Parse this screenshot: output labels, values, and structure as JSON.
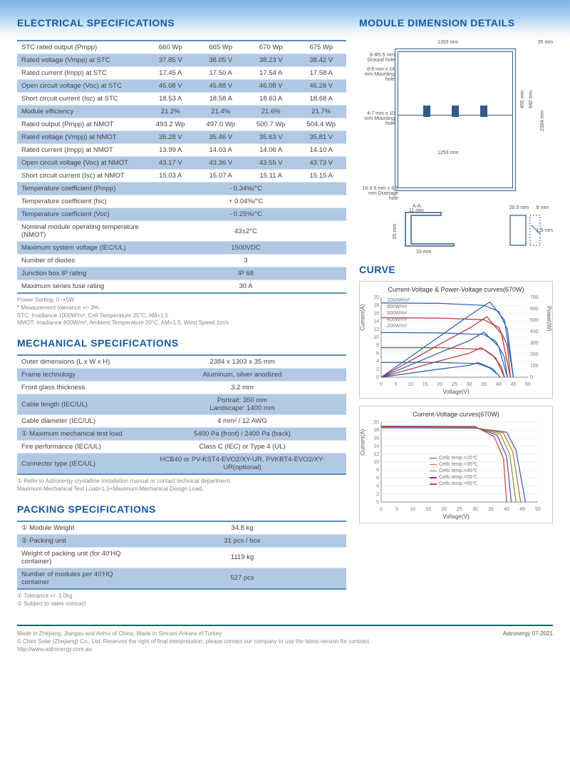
{
  "titles": {
    "electrical": "ELECTRICAL SPECIFICATIONS",
    "dimension": "MODULE DIMENSION DETAILS",
    "mechanical": "MECHANICAL SPECIFICATIONS",
    "curve": "CURVE",
    "packing": "PACKING SPECIFICATIONS"
  },
  "elec": {
    "rows4": [
      {
        "l": "STC rated output (Pmpp)",
        "v": [
          "660 Wp",
          "665 Wp",
          "670 Wp",
          "675 Wp"
        ]
      },
      {
        "l": "Rated voltage (Vmpp) at STC",
        "v": [
          "37.85 V",
          "38.05 V",
          "38.23 V",
          "38.42 V"
        ]
      },
      {
        "l": "Rated current (Impp) at STC",
        "v": [
          "17.45 A",
          "17.50 A",
          "17.54 A",
          "17.58 A"
        ]
      },
      {
        "l": "Open circuit voltage (Voc) at STC",
        "v": [
          "45.68 V",
          "45.88 V",
          "46.08 V",
          "46.28 V"
        ]
      },
      {
        "l": "Short circuit current (Isc) at STC",
        "v": [
          "18.53 A",
          "18.58 A",
          "18.63 A",
          "18.68 A"
        ]
      },
      {
        "l": "Module efficiency",
        "v": [
          "21.2%",
          "21.4%",
          "21.6%",
          "21.7%"
        ]
      },
      {
        "l": "Rated output (Pmpp) at NMOT",
        "v": [
          "493.2 Wp",
          "497.0 Wp",
          "500.7 Wp",
          "504.4 Wp"
        ]
      },
      {
        "l": "Rated voltage (Vmpp) at NMOT",
        "v": [
          "35.28 V",
          "35.46 V",
          "35.63 V",
          "35.81 V"
        ]
      },
      {
        "l": "Rated current (Impp) at NMOT",
        "v": [
          "13.99 A",
          "14.03 A",
          "14.06 A",
          "14.10 A"
        ]
      },
      {
        "l": "Open circuit voltage (Voc) at NMOT",
        "v": [
          "43.17 V",
          "43.36 V",
          "43.55 V",
          "43.73 V"
        ]
      },
      {
        "l": "Short circuit current (Isc) at NMOT",
        "v": [
          "15.03 A",
          "15.07 A",
          "15.11 A",
          "15.15 A"
        ]
      }
    ],
    "rows1": [
      {
        "l": "Temperature coefficient (Pmpp)",
        "v": "- 0.34%/°C"
      },
      {
        "l": "Temperature coefficient (Isc)",
        "v": "+ 0.04%/°C"
      },
      {
        "l": "Temperature coefficient (Voc)",
        "v": "- 0.25%/°C"
      },
      {
        "l": "Nominal module operating temperature (NMOT)",
        "v": "43±2°C"
      },
      {
        "l": "Maximum system voltage (IEC/UL)",
        "v": "1500VDC"
      },
      {
        "l": "Number of diodes",
        "v": "3"
      },
      {
        "l": "Junction box IP rating",
        "v": "IP 68"
      },
      {
        "l": "Maximum series fuse rating",
        "v": "30 A"
      }
    ],
    "notes": [
      "Power Sorting:  0~+5W",
      "* Measurement tolerance +/- 3%",
      "STC: Irradiance 1000W/m², Cell Temperature 25°C, AM=1.5",
      "NMOT: Irradiance 800W/m², Ambient Temperature 20°C, AM=1.5, Wind Speed 1m/s"
    ]
  },
  "mech": {
    "rows": [
      {
        "l": "Outer dimensions (L x W x H)",
        "v": "2384 x 1303 x 35 mm"
      },
      {
        "l": "Frame technology",
        "v": "Aluminum, silver anodized"
      },
      {
        "l": "Front glass thickness",
        "v": "3.2 mm"
      },
      {
        "l": "Cable length (IEC/UL)",
        "v": "Portrait: 350 mm\nLandscape: 1400 mm"
      },
      {
        "l": "Cable diameter (IEC/UL)",
        "v": "4 mm² / 12 AWG"
      },
      {
        "l": "① Maximum mechanical test load",
        "v": "5400 Pa (front) / 2400 Pa (back)"
      },
      {
        "l": "Fire performance (IEC/UL)",
        "v": "Class C (IEC) or Type 4 (UL)"
      },
      {
        "l": "Connector type (IEC/UL)",
        "v": "HCB40 or PV-KST4-EVO2/XY-UR, PVKBT4-EVO2/XY-UR(optional)"
      }
    ],
    "notes": [
      "① Refer to Astronergy crystalline installation manual or contact technical department.",
      "Maximum Mechanical Test Load=1.5×Maximum Mechanical Design Load."
    ]
  },
  "pack": {
    "rows": [
      {
        "l": "① Module Weight",
        "v": "34.8 kg"
      },
      {
        "l": "② Packing unit",
        "v": "31 pcs / box"
      },
      {
        "l": "Weight of packing unit (for 40'HQ container)",
        "v": "1119 kg"
      },
      {
        "l": "Number of modules per 40'HQ container",
        "v": "527 pcs"
      }
    ],
    "notes": [
      "① Tolerance +/- 1.0kg",
      "② Subject to sales contract"
    ]
  },
  "dim": {
    "w": "1303 mm",
    "h": "35 mm",
    "inner": "1253 mm",
    "height": "2384 mm",
    "h2": "940 mm",
    "h3": "460 mm",
    "ground": "8-Φ5.5 mm Ground hole",
    "mount1": "8-9 mm x 14 mm Mounting hole",
    "mount2": "4-7 mm x 10 mm Mounting hole",
    "drain": "16-3.5 mm x 8.5 mm Drainage hole",
    "aa": "A-A",
    "p11": "11 mm",
    "p33": "33 mm",
    "p35": "35 mm",
    "p205": "20.5 mm",
    "p9": "9 mm",
    "p15": "1.5 mm"
  },
  "chart1": {
    "title": "Current-Voltage & Power-Voltage curves(670W)",
    "xlabel": "Voltage(V)",
    "ylabel": "Current(A)",
    "ylabel2": "Power(W)",
    "xticks": [
      0,
      5,
      10,
      15,
      20,
      25,
      30,
      35,
      40,
      45,
      50
    ],
    "yticks": [
      0,
      2,
      4,
      6,
      8,
      10,
      12,
      14,
      16,
      18,
      20
    ],
    "y2ticks": [
      0,
      100,
      200,
      300,
      400,
      500,
      600,
      700
    ],
    "series": [
      {
        "label": "1000W/m²",
        "color": "#2b5bb5",
        "iv": [
          [
            0,
            18.6
          ],
          [
            20,
            18.5
          ],
          [
            35,
            18.0
          ],
          [
            40,
            16.5
          ],
          [
            43,
            12
          ],
          [
            45,
            0
          ]
        ],
        "pv": [
          [
            0,
            0
          ],
          [
            10,
            180
          ],
          [
            20,
            360
          ],
          [
            30,
            540
          ],
          [
            37,
            660
          ],
          [
            42,
            500
          ],
          [
            45,
            0
          ]
        ]
      },
      {
        "label": "800W/m²",
        "color": "#b33333",
        "iv": [
          [
            0,
            14.9
          ],
          [
            20,
            14.8
          ],
          [
            35,
            14.4
          ],
          [
            40,
            12.5
          ],
          [
            43,
            8
          ],
          [
            44,
            0
          ]
        ],
        "pv": [
          [
            0,
            0
          ],
          [
            10,
            145
          ],
          [
            20,
            290
          ],
          [
            30,
            430
          ],
          [
            36,
            530
          ],
          [
            41,
            380
          ],
          [
            44,
            0
          ]
        ]
      },
      {
        "label": "600W/m²",
        "color": "#2b5bb5",
        "iv": [
          [
            0,
            11.2
          ],
          [
            20,
            11.1
          ],
          [
            35,
            10.7
          ],
          [
            39,
            9
          ],
          [
            42,
            5
          ],
          [
            43,
            0
          ]
        ],
        "pv": [
          [
            0,
            0
          ],
          [
            10,
            108
          ],
          [
            20,
            216
          ],
          [
            30,
            320
          ],
          [
            35,
            395
          ],
          [
            40,
            270
          ],
          [
            43,
            0
          ]
        ]
      },
      {
        "label": "400W/m²",
        "color": "#b33333",
        "iv": [
          [
            0,
            7.4
          ],
          [
            20,
            7.4
          ],
          [
            35,
            7.0
          ],
          [
            38,
            5.5
          ],
          [
            41,
            2.5
          ],
          [
            42,
            0
          ]
        ],
        "pv": [
          [
            0,
            0
          ],
          [
            10,
            72
          ],
          [
            20,
            144
          ],
          [
            30,
            210
          ],
          [
            34,
            260
          ],
          [
            39,
            170
          ],
          [
            42,
            0
          ]
        ]
      },
      {
        "label": "200W/m²",
        "color": "#2b5bb5",
        "iv": [
          [
            0,
            3.7
          ],
          [
            20,
            3.7
          ],
          [
            33,
            3.4
          ],
          [
            37,
            2.3
          ],
          [
            40,
            0.5
          ],
          [
            40.5,
            0
          ]
        ],
        "pv": [
          [
            0,
            0
          ],
          [
            10,
            36
          ],
          [
            20,
            72
          ],
          [
            30,
            104
          ],
          [
            33,
            128
          ],
          [
            38,
            75
          ],
          [
            40.5,
            0
          ]
        ]
      }
    ]
  },
  "chart2": {
    "title": "Current-Voltage curves(670W)",
    "xlabel": "Voltage(V)",
    "ylabel": "Current(A)",
    "xticks": [
      0,
      5,
      10,
      15,
      20,
      25,
      30,
      35,
      40,
      45,
      50
    ],
    "yticks": [
      0,
      2,
      4,
      6,
      8,
      10,
      12,
      14,
      16,
      18,
      20
    ],
    "series": [
      {
        "label": "Cells temp.=25℃",
        "color": "#2b5bb5",
        "iv": [
          [
            0,
            18.6
          ],
          [
            30,
            18.5
          ],
          [
            40,
            17.5
          ],
          [
            43,
            13
          ],
          [
            46,
            0
          ]
        ]
      },
      {
        "label": "Cells temp.=35℃",
        "color": "#d06a2a",
        "iv": [
          [
            0,
            18.7
          ],
          [
            30,
            18.6
          ],
          [
            39,
            17.3
          ],
          [
            42,
            12.5
          ],
          [
            44.5,
            0
          ]
        ]
      },
      {
        "label": "Cells temp.=45℃",
        "color": "#7a9a3c",
        "iv": [
          [
            0,
            18.8
          ],
          [
            30,
            18.7
          ],
          [
            38,
            17.0
          ],
          [
            41,
            12
          ],
          [
            43,
            0
          ]
        ]
      },
      {
        "label": "Cells temp.=55℃",
        "color": "#6a3ab0",
        "iv": [
          [
            0,
            18.9
          ],
          [
            30,
            18.8
          ],
          [
            37,
            16.7
          ],
          [
            40,
            11.5
          ],
          [
            41.5,
            0
          ]
        ]
      },
      {
        "label": "Cells temp.=65℃",
        "color": "#c9443a",
        "iv": [
          [
            0,
            19.0
          ],
          [
            30,
            18.9
          ],
          [
            36,
            16.4
          ],
          [
            39,
            11
          ],
          [
            40,
            0
          ]
        ]
      }
    ]
  },
  "footer": {
    "l1": "Made in Zhejiang, Jiangsu and Anhui of China, Made in Sincan/ Ankara of Turkey",
    "l2": "© Chint Solar (Zhejiang) Co., Ltd. Reserves the right of final interpretation. please contact our company to use the latest version for contract.",
    "l3": "http://www.astronergy.com.au",
    "brand": "Astronergy",
    "date": "07-2021"
  }
}
